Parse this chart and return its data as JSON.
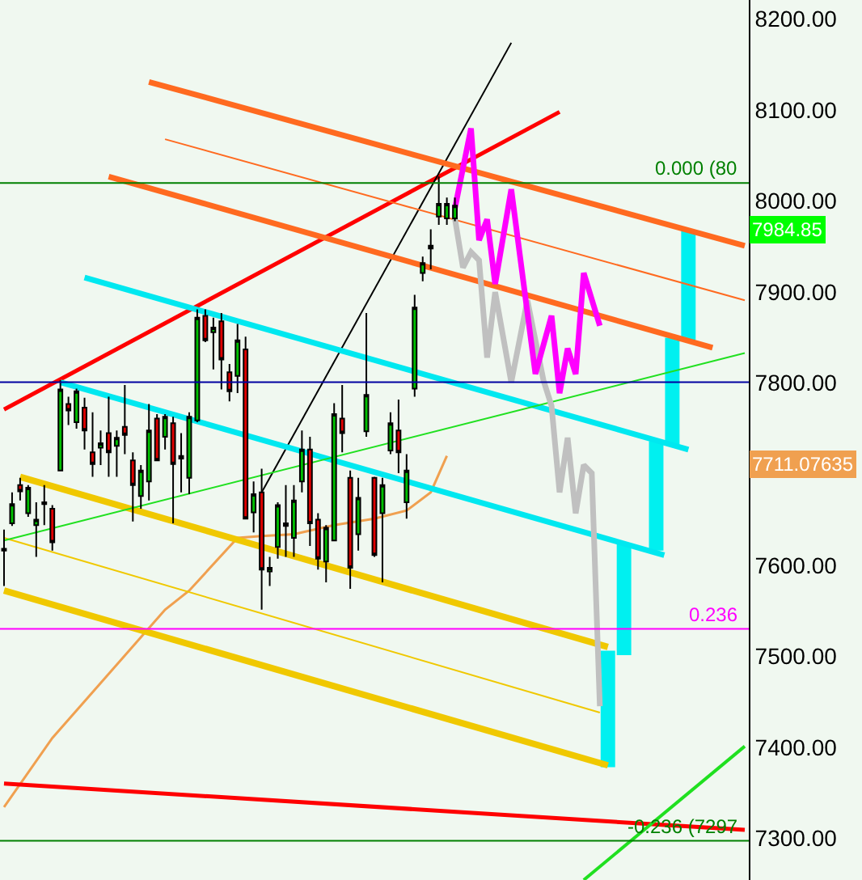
{
  "chart_data": {
    "type": "candlestick",
    "categories": [
      null,
      null,
      null,
      null,
      null,
      null,
      null,
      null,
      null,
      null,
      null,
      null,
      null,
      null,
      null,
      null,
      null,
      null,
      null,
      null,
      null,
      null,
      null,
      null,
      null,
      null,
      null,
      null,
      null,
      null,
      null,
      null,
      null,
      null,
      null,
      null,
      null,
      null,
      null,
      null,
      null,
      null,
      null,
      null,
      null,
      null,
      null,
      null,
      null,
      null,
      null,
      null,
      null,
      null,
      null,
      null,
      null,
      null,
      null,
      null,
      null,
      null,
      null,
      null,
      null,
      null,
      null,
      null,
      null,
      null,
      null,
      null,
      null,
      null,
      null,
      null,
      null,
      null,
      null,
      null,
      null,
      null,
      null,
      null,
      null,
      null,
      null,
      null,
      null,
      null,
      null,
      null,
      null
    ],
    "ohlc": [
      [
        7616,
        7639,
        7577,
        7618
      ],
      [
        7646,
        7680,
        7643,
        7667
      ],
      [
        7688,
        7696,
        7671,
        7681
      ],
      [
        7657,
        7688,
        7653,
        7685
      ],
      [
        7644,
        7669,
        7609,
        7650
      ],
      [
        7667,
        7688,
        7644,
        7669
      ],
      [
        7662,
        7666,
        7616,
        7625
      ],
      [
        7704,
        7803,
        7704,
        7793
      ],
      [
        7777,
        7785,
        7754,
        7770
      ],
      [
        7757,
        7794,
        7750,
        7791
      ],
      [
        7773,
        7784,
        7727,
        7748
      ],
      [
        7724,
        7768,
        7697,
        7711
      ],
      [
        7729,
        7748,
        7710,
        7734
      ],
      [
        7745,
        7785,
        7697,
        7724
      ],
      [
        7731,
        7748,
        7697,
        7740
      ],
      [
        7752,
        7798,
        7722,
        7743
      ],
      [
        7715,
        7724,
        7648,
        7688
      ],
      [
        7676,
        7710,
        7662,
        7704
      ],
      [
        7692,
        7777,
        7671,
        7748
      ],
      [
        7761,
        7766,
        7715,
        7715
      ],
      [
        7741,
        7766,
        7727,
        7763
      ],
      [
        7756,
        7763,
        7646,
        7711
      ],
      [
        7720,
        7745,
        7680,
        7717
      ],
      [
        7696,
        7768,
        7678,
        7763
      ],
      [
        7759,
        7881,
        7757,
        7872
      ],
      [
        7874,
        7881,
        7845,
        7847
      ],
      [
        7856,
        7872,
        7815,
        7861
      ],
      [
        7868,
        7877,
        7793,
        7826
      ],
      [
        7812,
        7821,
        7780,
        7791
      ],
      [
        7808,
        7865,
        7789,
        7847
      ],
      [
        7837,
        7851,
        7651,
        7651
      ],
      [
        7658,
        7692,
        7636,
        7678
      ],
      [
        7680,
        7706,
        7551,
        7595
      ],
      [
        7593,
        7609,
        7577,
        7597
      ],
      [
        7620,
        7669,
        7607,
        7666
      ],
      [
        7646,
        7688,
        7609,
        7643
      ],
      [
        7630,
        7688,
        7609,
        7671
      ],
      [
        7692,
        7748,
        7680,
        7727
      ],
      [
        7727,
        7741,
        7621,
        7646
      ],
      [
        7650,
        7657,
        7595,
        7607
      ],
      [
        7604,
        7644,
        7581,
        7641
      ],
      [
        7627,
        7778,
        7627,
        7766
      ],
      [
        7761,
        7798,
        7724,
        7745
      ],
      [
        7696,
        7704,
        7574,
        7597
      ],
      [
        7634,
        7696,
        7616,
        7674
      ],
      [
        7747,
        7877,
        7741,
        7787
      ],
      [
        7696,
        7697,
        7609,
        7611
      ],
      [
        7657,
        7696,
        7581,
        7688
      ],
      [
        7726,
        7768,
        7722,
        7756
      ],
      [
        7748,
        7782,
        7701,
        7724
      ],
      [
        7669,
        7722,
        7651,
        7704
      ],
      [
        7794,
        7897,
        7785,
        7883
      ],
      [
        7921,
        7939,
        7912,
        7932
      ],
      [
        7948,
        7969,
        7925,
        7951
      ],
      [
        7983,
        8027,
        7974,
        7997
      ],
      [
        7981,
        8004,
        7974,
        7997
      ],
      [
        7981,
        8004,
        7978,
        7995
      ],
      null,
      null,
      null,
      null,
      null,
      null,
      null,
      null,
      null,
      null,
      null,
      null,
      null,
      null,
      null,
      null,
      null,
      null,
      null,
      null,
      null,
      null,
      null,
      null,
      null,
      null,
      null,
      null,
      null,
      null,
      null,
      null,
      null,
      null,
      null,
      null
    ],
    "series": [
      {
        "type": "line",
        "color": "#f0a050",
        "values": [
          7334,
          null,
          null,
          null,
          null,
          null,
          7410,
          null,
          null,
          null,
          null,
          null,
          null,
          null,
          null,
          null,
          null,
          null,
          null,
          null,
          7551,
          null,
          null,
          7572,
          null,
          null,
          null,
          null,
          null,
          7630,
          null,
          null,
          7632,
          null,
          null,
          null,
          7634,
          null,
          null,
          null,
          null,
          7644,
          null,
          null,
          null,
          null,
          7651,
          null,
          null,
          null,
          7660,
          null,
          null,
          7680,
          null,
          7720,
          null,
          null,
          null,
          null,
          null,
          null,
          null,
          null,
          null,
          null,
          null,
          null,
          null,
          null,
          null,
          null,
          null,
          null,
          null,
          null,
          null,
          null,
          null,
          null,
          null,
          null,
          null,
          null,
          null,
          null,
          null,
          null,
          null,
          null,
          null,
          null,
          null
        ]
      },
      {
        "type": "line",
        "color": "#ff0000",
        "values": [
          7771,
          null,
          null,
          null,
          null,
          null,
          null,
          null,
          null,
          null,
          null,
          null,
          null,
          null,
          null,
          null,
          null,
          null,
          null,
          null,
          null,
          null,
          null,
          null,
          null,
          null,
          null,
          null,
          null,
          null,
          null,
          null,
          null,
          null,
          null,
          null,
          null,
          null,
          null,
          null,
          null,
          null,
          null,
          null,
          null,
          null,
          null,
          null,
          null,
          null,
          null,
          null,
          null,
          null,
          null,
          null,
          null,
          null,
          null,
          null,
          null,
          null,
          null,
          null,
          null,
          null,
          null,
          null,
          null,
          8098,
          null,
          null,
          null,
          null,
          null,
          null,
          null,
          null,
          null,
          null,
          null,
          null,
          null,
          null,
          null,
          null,
          null,
          null,
          null,
          null,
          null,
          null,
          null
        ]
      },
      {
        "type": "line",
        "color": "#ff0000",
        "values": [
          7360,
          null,
          null,
          null,
          null,
          null,
          null,
          null,
          null,
          null,
          null,
          null,
          null,
          null,
          null,
          null,
          null,
          null,
          null,
          null,
          null,
          null,
          null,
          null,
          null,
          null,
          null,
          null,
          null,
          null,
          null,
          null,
          null,
          null,
          null,
          null,
          null,
          null,
          null,
          null,
          null,
          null,
          null,
          null,
          null,
          null,
          null,
          null,
          null,
          null,
          null,
          null,
          null,
          null,
          null,
          null,
          null,
          null,
          null,
          null,
          null,
          null,
          null,
          null,
          null,
          null,
          null,
          null,
          null,
          null,
          null,
          null,
          null,
          null,
          null,
          null,
          null,
          null,
          null,
          null,
          null,
          null,
          null,
          null,
          null,
          null,
          null,
          null,
          null,
          null,
          null,
          null,
          7309
        ]
      },
      {
        "type": "line",
        "color": "#000000",
        "values": [
          null,
          null,
          null,
          null,
          null,
          null,
          null,
          null,
          null,
          null,
          null,
          null,
          null,
          null,
          null,
          null,
          null,
          null,
          null,
          null,
          null,
          null,
          null,
          null,
          null,
          null,
          null,
          null,
          null,
          null,
          null,
          null,
          7680,
          null,
          null,
          null,
          null,
          null,
          null,
          null,
          null,
          null,
          null,
          null,
          null,
          null,
          null,
          null,
          null,
          null,
          null,
          null,
          null,
          null,
          null,
          null,
          null,
          null,
          null,
          null,
          null,
          null,
          null,
          8174,
          null,
          null,
          null,
          null,
          null,
          null,
          null,
          null,
          null,
          null,
          null,
          null,
          null,
          null,
          null,
          null,
          null,
          null,
          null,
          null,
          null,
          null,
          null,
          null,
          null,
          null,
          null,
          null,
          null
        ]
      },
      {
        "type": "line",
        "color": "#ff6a20",
        "values": [
          null,
          null,
          null,
          null,
          null,
          null,
          null,
          null,
          null,
          null,
          null,
          null,
          null,
          null,
          null,
          null,
          null,
          null,
          8131,
          null,
          null,
          null,
          null,
          null,
          null,
          null,
          null,
          null,
          null,
          null,
          null,
          null,
          null,
          null,
          null,
          null,
          null,
          null,
          null,
          null,
          null,
          null,
          null,
          null,
          null,
          null,
          null,
          null,
          null,
          null,
          null,
          null,
          null,
          null,
          null,
          null,
          null,
          null,
          null,
          null,
          null,
          null,
          null,
          null,
          null,
          null,
          null,
          null,
          null,
          null,
          null,
          null,
          null,
          null,
          null,
          null,
          null,
          null,
          null,
          null,
          null,
          null,
          null,
          null,
          null,
          null,
          null,
          null,
          null,
          null,
          null,
          null,
          7951
        ]
      },
      {
        "type": "line",
        "color": "#ff6a20",
        "values": [
          null,
          null,
          null,
          null,
          null,
          null,
          null,
          null,
          null,
          null,
          null,
          null,
          null,
          null,
          null,
          null,
          null,
          null,
          null,
          null,
          8068,
          null,
          null,
          null,
          null,
          null,
          null,
          null,
          null,
          null,
          null,
          null,
          null,
          null,
          null,
          null,
          null,
          null,
          null,
          null,
          null,
          null,
          null,
          null,
          null,
          null,
          null,
          null,
          null,
          null,
          null,
          null,
          null,
          null,
          null,
          null,
          null,
          null,
          null,
          null,
          null,
          null,
          null,
          null,
          null,
          null,
          null,
          null,
          null,
          null,
          null,
          null,
          null,
          null,
          null,
          null,
          null,
          null,
          null,
          null,
          null,
          null,
          null,
          null,
          null,
          null,
          null,
          null,
          null,
          null,
          null,
          null,
          7891
        ]
      },
      {
        "type": "line",
        "color": "#ff6a20",
        "values": [
          null,
          null,
          null,
          null,
          null,
          null,
          null,
          null,
          null,
          null,
          null,
          null,
          null,
          8027,
          null,
          null,
          null,
          null,
          null,
          null,
          null,
          null,
          null,
          null,
          null,
          null,
          null,
          null,
          null,
          null,
          null,
          null,
          null,
          null,
          null,
          null,
          null,
          null,
          null,
          null,
          null,
          null,
          null,
          null,
          null,
          null,
          null,
          null,
          null,
          null,
          null,
          null,
          null,
          null,
          null,
          null,
          null,
          null,
          null,
          null,
          null,
          null,
          null,
          null,
          null,
          null,
          null,
          null,
          null,
          null,
          null,
          null,
          null,
          null,
          null,
          null,
          null,
          null,
          null,
          null,
          null,
          null,
          null,
          null,
          null,
          null,
          null,
          null,
          7839,
          null,
          null,
          null,
          null
        ]
      },
      {
        "type": "line",
        "color": "#00e8f0",
        "values": [
          null,
          null,
          null,
          null,
          null,
          null,
          null,
          null,
          null,
          null,
          7916,
          null,
          null,
          null,
          null,
          null,
          null,
          null,
          null,
          null,
          null,
          null,
          null,
          null,
          null,
          null,
          null,
          null,
          null,
          null,
          null,
          null,
          null,
          null,
          null,
          null,
          null,
          null,
          null,
          null,
          null,
          null,
          null,
          null,
          null,
          null,
          null,
          null,
          null,
          null,
          null,
          null,
          null,
          null,
          null,
          null,
          null,
          null,
          null,
          null,
          null,
          null,
          null,
          null,
          null,
          null,
          null,
          null,
          null,
          null,
          null,
          null,
          null,
          null,
          null,
          null,
          null,
          null,
          null,
          null,
          null,
          null,
          null,
          null,
          null,
          7727,
          null,
          null,
          null,
          null,
          null,
          null,
          null
        ]
      },
      {
        "type": "line",
        "color": "#00e8f0",
        "values": [
          null,
          null,
          null,
          null,
          null,
          null,
          null,
          7801,
          null,
          null,
          null,
          null,
          null,
          null,
          null,
          null,
          null,
          null,
          null,
          null,
          null,
          null,
          null,
          null,
          null,
          null,
          null,
          null,
          null,
          null,
          null,
          null,
          null,
          null,
          null,
          null,
          null,
          null,
          null,
          null,
          null,
          null,
          null,
          null,
          null,
          null,
          null,
          null,
          null,
          null,
          null,
          null,
          null,
          null,
          null,
          null,
          null,
          null,
          null,
          null,
          null,
          null,
          null,
          null,
          null,
          null,
          null,
          null,
          null,
          null,
          null,
          null,
          null,
          null,
          null,
          null,
          null,
          null,
          null,
          null,
          null,
          null,
          7611,
          null,
          null,
          null,
          null,
          null,
          null,
          null,
          null,
          null,
          null
        ]
      },
      {
        "type": "line",
        "color": "#f0c800",
        "values": [
          null,
          null,
          7697,
          null,
          null,
          null,
          null,
          null,
          null,
          null,
          null,
          null,
          null,
          null,
          null,
          null,
          null,
          null,
          null,
          null,
          null,
          null,
          null,
          null,
          null,
          null,
          null,
          null,
          null,
          null,
          null,
          null,
          null,
          null,
          null,
          null,
          null,
          null,
          null,
          null,
          null,
          null,
          null,
          null,
          null,
          null,
          null,
          null,
          null,
          null,
          null,
          null,
          null,
          null,
          null,
          null,
          null,
          null,
          null,
          null,
          null,
          null,
          null,
          null,
          null,
          null,
          null,
          null,
          null,
          null,
          null,
          null,
          null,
          null,
          null,
          7510,
          null,
          null,
          null,
          null,
          null,
          null,
          null,
          null,
          null,
          null,
          null,
          null,
          null,
          null,
          null,
          null,
          null
        ]
      },
      {
        "type": "line",
        "color": "#f0c800",
        "values": [
          7630,
          null,
          null,
          null,
          null,
          null,
          null,
          null,
          null,
          null,
          null,
          null,
          null,
          null,
          null,
          null,
          null,
          null,
          null,
          null,
          null,
          null,
          null,
          null,
          null,
          null,
          null,
          null,
          null,
          null,
          null,
          null,
          null,
          null,
          null,
          null,
          null,
          null,
          null,
          null,
          null,
          null,
          null,
          null,
          null,
          null,
          null,
          null,
          null,
          null,
          null,
          null,
          null,
          null,
          null,
          null,
          null,
          null,
          null,
          null,
          null,
          null,
          null,
          null,
          null,
          null,
          null,
          null,
          null,
          null,
          null,
          null,
          null,
          null,
          7438,
          null,
          null,
          null,
          null,
          null,
          null,
          null,
          null,
          null,
          null,
          null,
          null,
          null,
          null,
          null,
          null,
          null,
          null
        ]
      },
      {
        "type": "line",
        "color": "#f0c800",
        "values": [
          7572,
          null,
          null,
          null,
          null,
          null,
          null,
          null,
          null,
          null,
          null,
          null,
          null,
          null,
          null,
          null,
          null,
          null,
          null,
          null,
          null,
          null,
          null,
          null,
          null,
          null,
          null,
          null,
          null,
          null,
          null,
          null,
          null,
          null,
          null,
          null,
          null,
          null,
          null,
          null,
          null,
          null,
          null,
          null,
          null,
          null,
          null,
          null,
          null,
          null,
          null,
          null,
          null,
          null,
          null,
          null,
          null,
          null,
          null,
          null,
          null,
          null,
          null,
          null,
          null,
          null,
          null,
          null,
          null,
          null,
          null,
          null,
          null,
          null,
          null,
          7380,
          null,
          null,
          null,
          null,
          null,
          null,
          null,
          null,
          null,
          null,
          null,
          null,
          null,
          null,
          null,
          null,
          null
        ]
      },
      {
        "type": "line",
        "color": "#20e020",
        "values": [
          7627,
          null,
          null,
          null,
          null,
          null,
          null,
          null,
          null,
          null,
          null,
          null,
          null,
          null,
          null,
          null,
          null,
          null,
          null,
          null,
          null,
          null,
          null,
          null,
          null,
          null,
          null,
          null,
          null,
          null,
          null,
          null,
          null,
          null,
          null,
          null,
          null,
          null,
          null,
          null,
          null,
          null,
          null,
          null,
          null,
          null,
          null,
          null,
          null,
          null,
          null,
          null,
          null,
          null,
          null,
          null,
          null,
          null,
          null,
          null,
          null,
          null,
          null,
          null,
          null,
          null,
          null,
          null,
          null,
          null,
          null,
          null,
          null,
          null,
          null,
          null,
          null,
          null,
          null,
          null,
          null,
          null,
          null,
          null,
          null,
          null,
          null,
          null,
          null,
          null,
          null,
          null,
          7833
        ]
      },
      {
        "type": "line",
        "color": "#20e020",
        "values": [
          null,
          null,
          null,
          null,
          null,
          null,
          null,
          null,
          null,
          null,
          null,
          null,
          null,
          null,
          null,
          null,
          null,
          null,
          null,
          null,
          null,
          null,
          null,
          null,
          null,
          null,
          null,
          null,
          null,
          null,
          null,
          null,
          null,
          null,
          null,
          null,
          null,
          null,
          null,
          null,
          null,
          null,
          null,
          null,
          null,
          null,
          null,
          null,
          null,
          null,
          null,
          null,
          null,
          null,
          null,
          null,
          null,
          null,
          null,
          null,
          null,
          null,
          null,
          null,
          null,
          null,
          null,
          null,
          null,
          null,
          null,
          null,
          7254,
          null,
          null,
          null,
          null,
          null,
          null,
          null,
          null,
          null,
          null,
          null,
          null,
          null,
          null,
          null,
          null,
          null,
          null,
          null,
          7401
        ]
      },
      {
        "type": "line",
        "color": "#c0c0c0",
        "values": [
          null,
          null,
          null,
          null,
          null,
          null,
          null,
          null,
          null,
          null,
          null,
          null,
          null,
          null,
          null,
          null,
          null,
          null,
          null,
          null,
          null,
          null,
          null,
          null,
          null,
          null,
          null,
          null,
          null,
          null,
          null,
          null,
          null,
          null,
          null,
          null,
          null,
          null,
          null,
          null,
          null,
          null,
          null,
          null,
          null,
          null,
          null,
          null,
          null,
          null,
          null,
          null,
          null,
          null,
          null,
          null,
          7981,
          7927,
          7944,
          7935,
          7828,
          7900,
          null,
          7801,
          null,
          7891,
          null,
          7803,
          7775,
          7680,
          7740,
          7657,
          7710,
          7701,
          7445,
          null,
          null,
          null,
          null,
          null,
          null,
          null,
          null,
          null,
          null,
          null,
          null,
          null,
          null,
          null,
          null,
          null,
          null
        ]
      },
      {
        "type": "line",
        "color": "#ff00ff",
        "values": [
          null,
          null,
          null,
          null,
          null,
          null,
          null,
          null,
          null,
          null,
          null,
          null,
          null,
          null,
          null,
          null,
          null,
          null,
          null,
          null,
          null,
          null,
          null,
          null,
          null,
          null,
          null,
          null,
          null,
          null,
          null,
          null,
          null,
          null,
          null,
          null,
          null,
          null,
          null,
          null,
          null,
          null,
          null,
          null,
          null,
          null,
          null,
          null,
          null,
          null,
          null,
          null,
          null,
          null,
          null,
          null,
          7992,
          null,
          8080,
          7957,
          7980,
          7909,
          null,
          8013,
          null,
          null,
          7810,
          null,
          7874,
          7789,
          7838,
          7810,
          7921,
          null,
          7863,
          null,
          null,
          null,
          null,
          null,
          null,
          null,
          null,
          null,
          null,
          null,
          null,
          null,
          null,
          null,
          null,
          null,
          null
        ]
      },
      {
        "type": "bar",
        "color": "#00f0f0",
        "base": [
          null,
          null,
          null,
          null,
          null,
          null,
          null,
          null,
          null,
          null,
          null,
          null,
          null,
          null,
          null,
          null,
          null,
          null,
          null,
          null,
          null,
          null,
          null,
          null,
          null,
          null,
          null,
          null,
          null,
          null,
          null,
          null,
          null,
          null,
          null,
          null,
          null,
          null,
          null,
          null,
          null,
          null,
          null,
          null,
          null,
          null,
          null,
          null,
          null,
          null,
          null,
          null,
          null,
          null,
          null,
          null,
          null,
          null,
          null,
          null,
          null,
          null,
          null,
          null,
          null,
          null,
          null,
          null,
          null,
          null,
          null,
          null,
          null,
          null,
          null,
          7378,
          null,
          7501,
          null,
          null,
          null,
          7616,
          null,
          7733,
          null,
          7847,
          null,
          null,
          null,
          null,
          null,
          null,
          null
        ],
        "values": [
          null,
          null,
          null,
          null,
          null,
          null,
          null,
          null,
          null,
          null,
          null,
          null,
          null,
          null,
          null,
          null,
          null,
          null,
          null,
          null,
          null,
          null,
          null,
          null,
          null,
          null,
          null,
          null,
          null,
          null,
          null,
          null,
          null,
          null,
          null,
          null,
          null,
          null,
          null,
          null,
          null,
          null,
          null,
          null,
          null,
          null,
          null,
          null,
          null,
          null,
          null,
          null,
          null,
          null,
          null,
          null,
          null,
          null,
          null,
          null,
          null,
          null,
          null,
          null,
          null,
          null,
          null,
          null,
          null,
          null,
          null,
          null,
          null,
          null,
          null,
          128,
          null,
          122,
          null,
          null,
          null,
          120,
          null,
          117,
          null,
          120,
          null,
          null,
          null,
          null,
          null,
          null,
          null
        ]
      }
    ],
    "ref_lines": [
      {
        "axis": "y",
        "value": 7801,
        "color": "#0000a0"
      },
      {
        "axis": "y",
        "value": 8020,
        "color": "#008000"
      },
      {
        "axis": "y",
        "value": 7530,
        "color": "#ff00ff"
      },
      {
        "axis": "y",
        "value": 7297,
        "color": "#008000"
      }
    ],
    "annotations": [
      "7984.85",
      "7711.07635",
      {
        "text": "0.000 (80",
        "y": 8020
      },
      {
        "text": "0.236",
        "y": 7530
      },
      {
        "text": "-0.236 (7297",
        "y": 7297
      }
    ],
    "ylim": [
      7254,
      8221
    ],
    "yticks": [
      {
        "value": 7300,
        "label": "7300.00"
      },
      {
        "value": 7400,
        "label": "7400.00"
      },
      {
        "value": 7500,
        "label": "7500.00"
      },
      {
        "value": 7600,
        "label": "7600.00"
      },
      {
        "value": 7800,
        "label": "7800.00"
      },
      {
        "value": 7900,
        "label": "7900.00"
      },
      {
        "value": 8000,
        "label": "8000.00"
      },
      {
        "value": 8100,
        "label": "8100.00"
      },
      {
        "value": 8200,
        "label": "8200.00"
      }
    ],
    "tick_labels": "y",
    "grid": false
  }
}
